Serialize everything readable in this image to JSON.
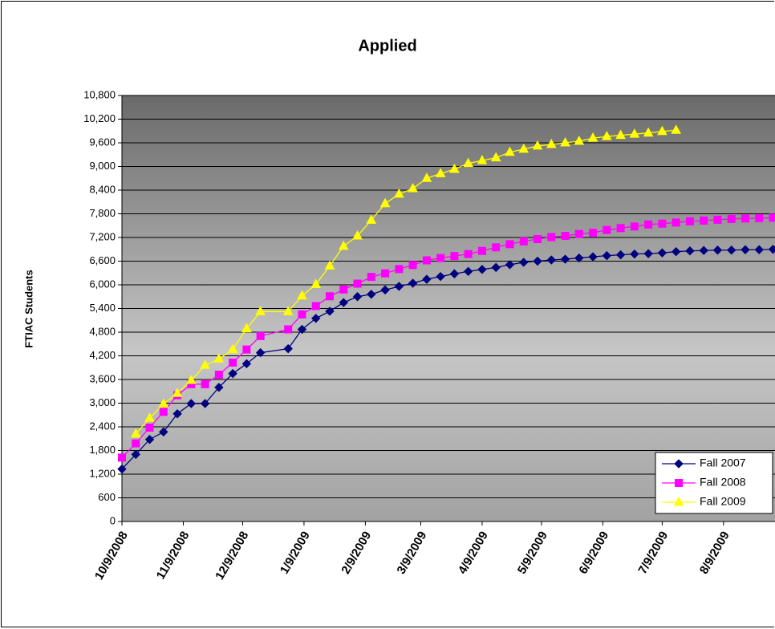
{
  "chart_data": {
    "type": "line",
    "title": "Applied",
    "y_label": "FTIAC Students",
    "x": [
      "2008-10-09",
      "2008-10-16",
      "2008-10-23",
      "2008-10-30",
      "2008-11-06",
      "2008-11-13",
      "2008-11-20",
      "2008-11-27",
      "2008-12-04",
      "2008-12-11",
      "2008-12-18",
      "2009-01-01",
      "2009-01-08",
      "2009-01-15",
      "2009-01-22",
      "2009-01-29",
      "2009-02-05",
      "2009-02-12",
      "2009-02-19",
      "2009-02-26",
      "2009-03-05",
      "2009-03-12",
      "2009-03-19",
      "2009-03-26",
      "2009-04-02",
      "2009-04-09",
      "2009-04-16",
      "2009-04-23",
      "2009-04-30",
      "2009-05-07",
      "2009-05-14",
      "2009-05-21",
      "2009-05-28",
      "2009-06-04",
      "2009-06-11",
      "2009-06-18",
      "2009-06-25",
      "2009-07-02",
      "2009-07-09",
      "2009-07-16",
      "2009-07-23",
      "2009-07-30",
      "2009-08-06",
      "2009-08-13",
      "2009-08-20",
      "2009-08-27",
      "2009-09-03"
    ],
    "series": [
      {
        "name": "Fall 2007",
        "color": "#000080",
        "marker": "diamond",
        "values": [
          1330,
          1700,
          2080,
          2270,
          2730,
          2990,
          2990,
          3400,
          3750,
          4000,
          4280,
          4380,
          4870,
          5150,
          5330,
          5550,
          5700,
          5760,
          5870,
          5960,
          6040,
          6140,
          6210,
          6280,
          6340,
          6390,
          6440,
          6510,
          6570,
          6600,
          6630,
          6650,
          6680,
          6710,
          6740,
          6760,
          6780,
          6790,
          6810,
          6840,
          6860,
          6870,
          6880,
          6880,
          6890,
          6890,
          6900
        ]
      },
      {
        "name": "Fall 2008",
        "color": "#ff00ff",
        "marker": "square",
        "values": [
          1620,
          1980,
          2380,
          2780,
          3200,
          3480,
          3480,
          3720,
          4030,
          4360,
          4700,
          4870,
          5250,
          5460,
          5710,
          5880,
          6030,
          6200,
          6290,
          6400,
          6500,
          6620,
          6680,
          6730,
          6780,
          6860,
          6950,
          7030,
          7100,
          7160,
          7210,
          7240,
          7290,
          7320,
          7390,
          7440,
          7480,
          7530,
          7550,
          7580,
          7610,
          7630,
          7650,
          7670,
          7680,
          7690,
          7700
        ]
      },
      {
        "name": "Fall 2009",
        "color": "#ffff00",
        "marker": "triangle",
        "values": [
          null,
          2220,
          2620,
          2980,
          3250,
          3580,
          3960,
          4120,
          4360,
          4890,
          5320,
          5320,
          5720,
          6010,
          6480,
          6980,
          7240,
          7640,
          8060,
          8300,
          8440,
          8700,
          8820,
          8930,
          9080,
          9150,
          9220,
          9360,
          9440,
          9520,
          9560,
          9600,
          9640,
          9720,
          9760,
          9790,
          9820,
          9850,
          9890,
          9920,
          null,
          null,
          null,
          null,
          null,
          null,
          null
        ]
      }
    ],
    "xlim": [
      "2008-10-09",
      "2009-09-04"
    ],
    "xticks": [
      {
        "value": "2008-10-09",
        "label": "10/9/2008"
      },
      {
        "value": "2008-11-09",
        "label": "11/9/2008"
      },
      {
        "value": "2008-12-09",
        "label": "12/9/2008"
      },
      {
        "value": "2009-01-09",
        "label": "1/9/2009"
      },
      {
        "value": "2009-02-09",
        "label": "2/9/2009"
      },
      {
        "value": "2009-03-09",
        "label": "3/9/2009"
      },
      {
        "value": "2009-04-09",
        "label": "4/9/2009"
      },
      {
        "value": "2009-05-09",
        "label": "5/9/2009"
      },
      {
        "value": "2009-06-09",
        "label": "6/9/2009"
      },
      {
        "value": "2009-07-09",
        "label": "7/9/2009"
      },
      {
        "value": "2009-08-09",
        "label": "8/9/2009"
      }
    ],
    "ylim": [
      0,
      10800
    ],
    "yticks": [
      0,
      600,
      {
        "value": 1200,
        "label": "1,200"
      },
      {
        "value": 1800,
        "label": "1,800"
      },
      {
        "value": 2400,
        "label": "2,400"
      },
      {
        "value": 3000,
        "label": "3,000"
      },
      {
        "value": 3600,
        "label": "3,600"
      },
      {
        "value": 4200,
        "label": "4,200"
      },
      {
        "value": 4800,
        "label": "4,800"
      },
      {
        "value": 5400,
        "label": "5,400"
      },
      {
        "value": 6000,
        "label": "6,000"
      },
      {
        "value": 6600,
        "label": "6,600"
      },
      {
        "value": 7200,
        "label": "7,200"
      },
      {
        "value": 7800,
        "label": "7,800"
      },
      {
        "value": 8400,
        "label": "8,400"
      },
      {
        "value": 9000,
        "label": "9,000"
      },
      {
        "value": 9600,
        "label": "9,600"
      },
      {
        "value": 10200,
        "label": "10,200"
      },
      {
        "value": 10800,
        "label": "10,800"
      }
    ],
    "grid": true,
    "legend": "lower right"
  }
}
